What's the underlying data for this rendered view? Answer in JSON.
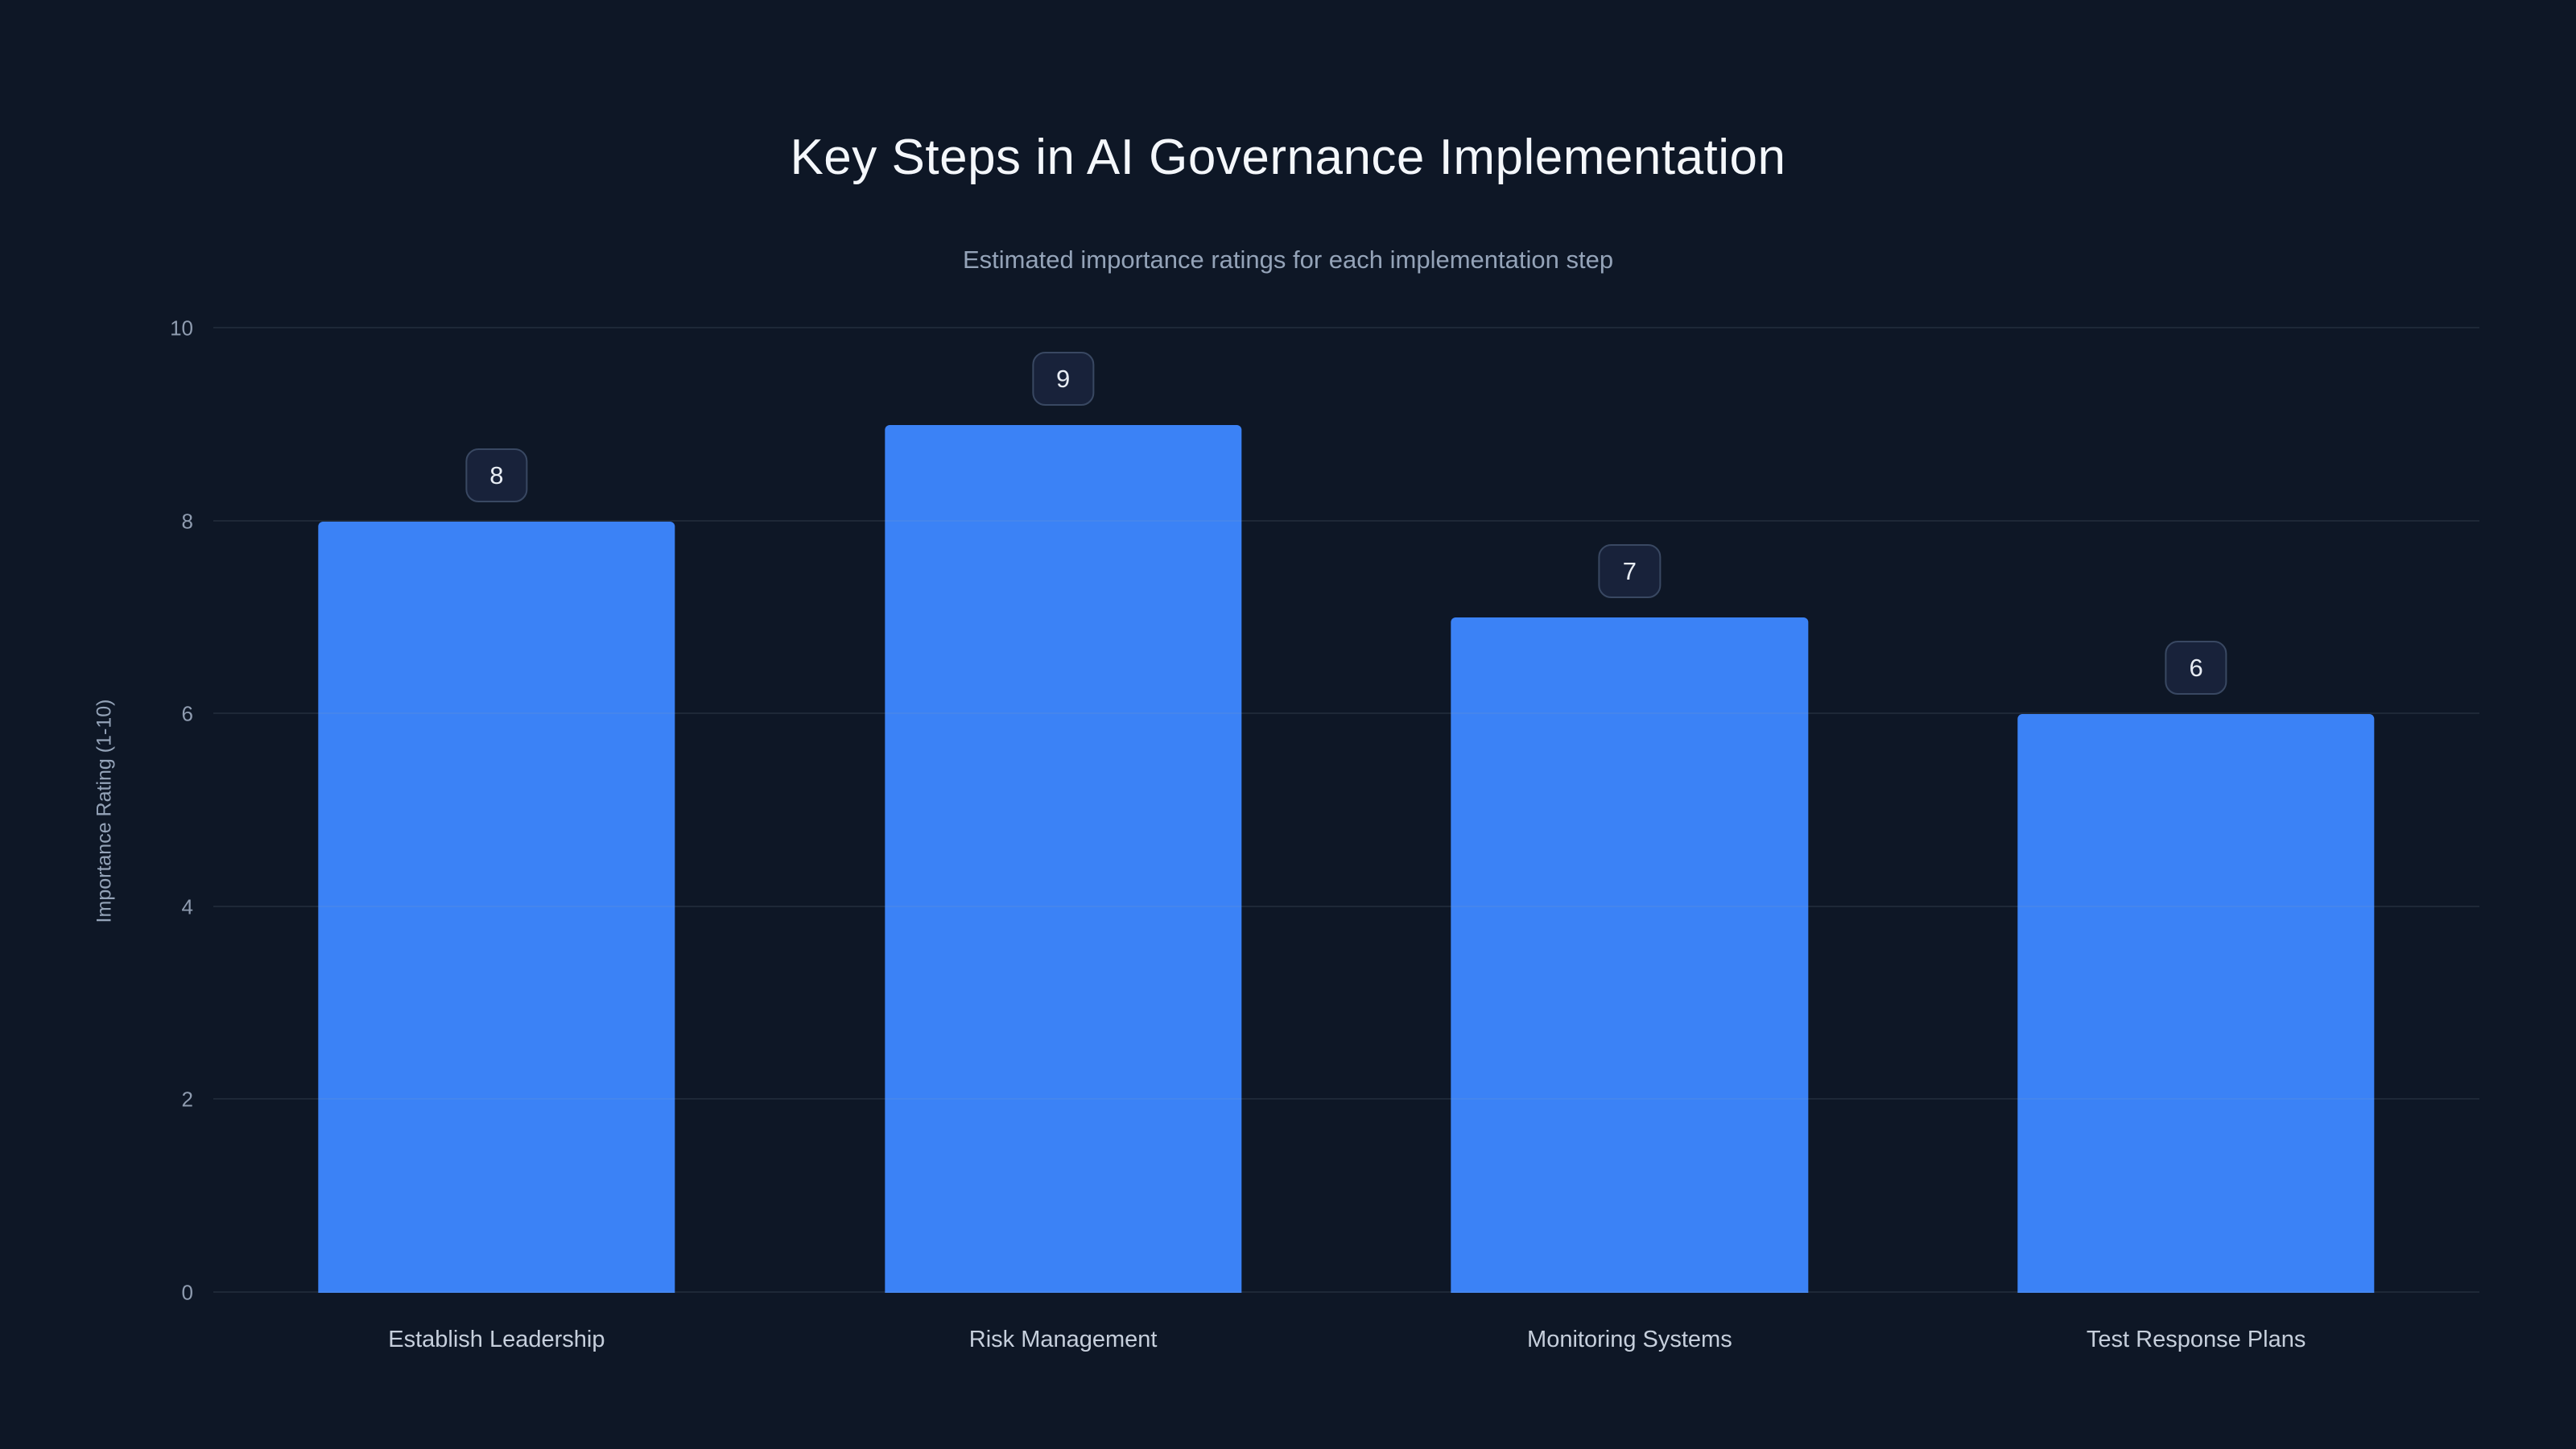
{
  "page": {
    "background_color": "#0e1726",
    "accent_color": "#3b82f6",
    "badge_background": "#18223a",
    "badge_border": "#394862",
    "gridline_color": "rgba(148,163,184,0.12)"
  },
  "chart_data": {
    "type": "bar",
    "title": "Key Steps in AI Governance Implementation",
    "subtitle": "Estimated importance ratings for each implementation step",
    "categories": [
      "Establish Leadership",
      "Risk Management",
      "Monitoring Systems",
      "Test Response Plans"
    ],
    "values": [
      8,
      9,
      7,
      6
    ],
    "xlabel": "",
    "ylabel": "Importance Rating (1-10)",
    "ylim": [
      0,
      10
    ],
    "yticks": [
      0,
      2,
      4,
      6,
      8,
      10
    ],
    "grid": true,
    "legend": "none",
    "bar_color": "#3b82f6",
    "value_labels_shown": true
  }
}
